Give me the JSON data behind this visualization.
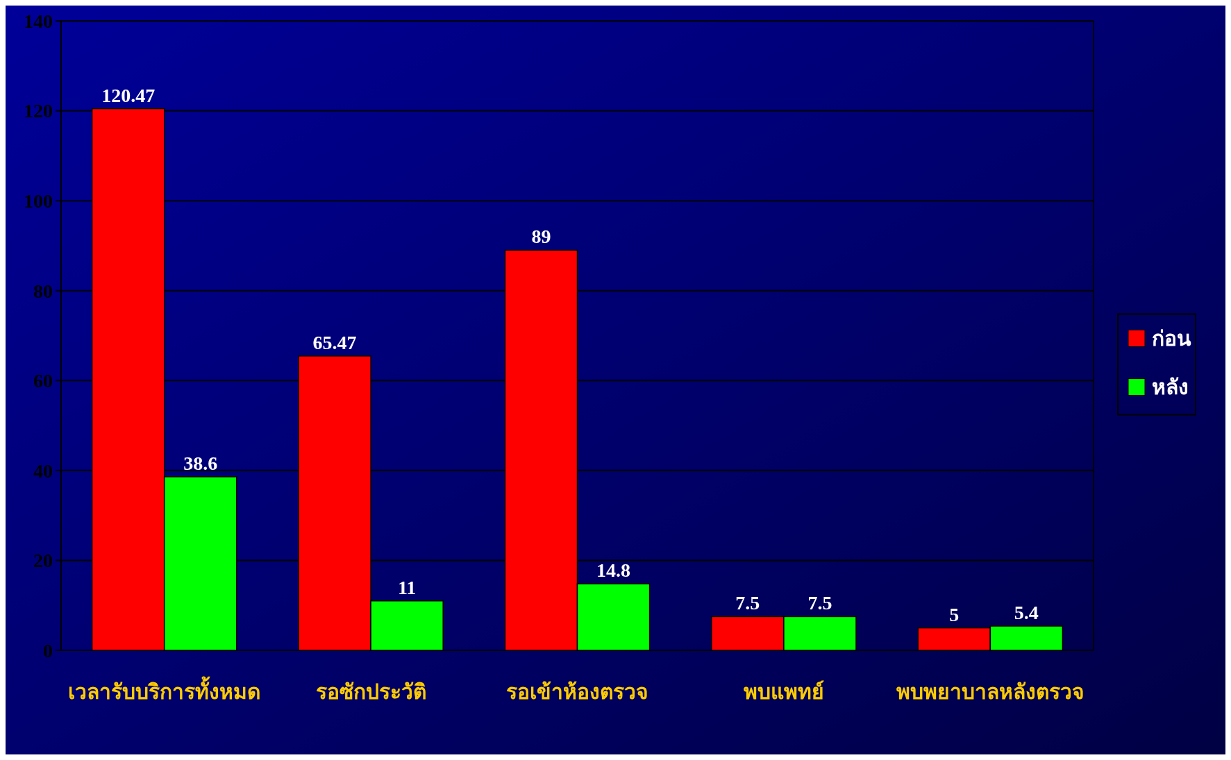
{
  "chart_data": {
    "type": "bar",
    "categories": [
      "เวลารับบริการทั้งหมด",
      "รอซักประวัติ",
      "รอเข้าห้องตรวจ",
      "พบแพทย์",
      "พบพยาบาลหลังตรวจ"
    ],
    "series": [
      {
        "name": "ก่อน",
        "color": "#ff0000",
        "values": [
          120.47,
          65.47,
          89,
          7.5,
          5
        ]
      },
      {
        "name": "หลัง",
        "color": "#00ff00",
        "values": [
          38.6,
          11,
          14.8,
          7.5,
          5.4
        ]
      }
    ],
    "ylim": [
      0,
      140
    ],
    "yticks": [
      0,
      20,
      40,
      60,
      80,
      100,
      120,
      140
    ],
    "grid": "y",
    "legend": "right",
    "data_labels": true
  }
}
